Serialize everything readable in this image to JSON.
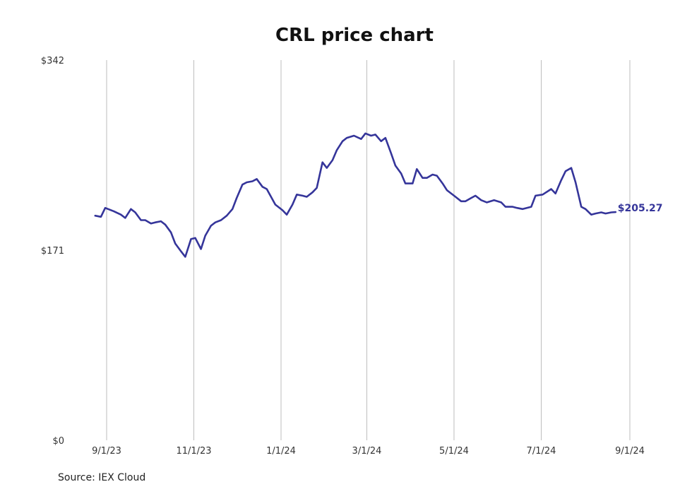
{
  "chart_data": {
    "type": "line",
    "title": "CRL price chart",
    "xlabel": "",
    "ylabel": "",
    "ylim": [
      0,
      342
    ],
    "y_ticks": [
      {
        "value": 0,
        "label": "$0"
      },
      {
        "value": 171,
        "label": "$171"
      },
      {
        "value": 342,
        "label": "$342"
      }
    ],
    "x_ticks": [
      {
        "date": "2023-09-01",
        "label": "9/1/23"
      },
      {
        "date": "2023-11-01",
        "label": "11/1/23"
      },
      {
        "date": "2024-01-01",
        "label": "1/1/24"
      },
      {
        "date": "2024-03-01",
        "label": "3/1/24"
      },
      {
        "date": "2024-05-01",
        "label": "5/1/24"
      },
      {
        "date": "2024-07-01",
        "label": "7/1/24"
      },
      {
        "date": "2024-09-01",
        "label": "9/1/24"
      }
    ],
    "grid": "vertical",
    "line_color": "#35359a",
    "last_value_label": "$205.27",
    "series": [
      {
        "x": [
          "2023-08-24",
          "2023-08-28",
          "2023-08-31",
          "2023-09-06",
          "2023-09-11",
          "2023-09-14",
          "2023-09-18",
          "2023-09-21",
          "2023-09-25",
          "2023-09-28",
          "2023-10-02",
          "2023-10-05",
          "2023-10-09",
          "2023-10-12",
          "2023-10-16",
          "2023-10-19",
          "2023-10-23",
          "2023-10-26",
          "2023-10-30",
          "2023-11-02",
          "2023-11-06",
          "2023-11-09",
          "2023-11-13",
          "2023-11-16",
          "2023-11-20",
          "2023-11-24",
          "2023-11-28",
          "2023-12-01",
          "2023-12-05",
          "2023-12-08",
          "2023-12-12",
          "2023-12-15",
          "2023-12-19",
          "2023-12-22",
          "2023-12-28",
          "2024-01-02",
          "2024-01-05",
          "2024-01-09",
          "2024-01-12",
          "2024-01-16",
          "2024-01-19",
          "2024-01-23",
          "2024-01-26",
          "2024-01-30",
          "2024-02-02",
          "2024-02-06",
          "2024-02-09",
          "2024-02-13",
          "2024-02-16",
          "2024-02-21",
          "2024-02-26",
          "2024-02-29",
          "2024-03-04",
          "2024-03-07",
          "2024-03-11",
          "2024-03-14",
          "2024-03-18",
          "2024-03-21",
          "2024-03-25",
          "2024-03-28",
          "2024-04-02",
          "2024-04-05",
          "2024-04-09",
          "2024-04-12",
          "2024-04-16",
          "2024-04-19",
          "2024-04-23",
          "2024-04-26",
          "2024-05-01",
          "2024-05-06",
          "2024-05-09",
          "2024-05-13",
          "2024-05-16",
          "2024-05-20",
          "2024-05-24",
          "2024-05-29",
          "2024-06-03",
          "2024-06-06",
          "2024-06-11",
          "2024-06-14",
          "2024-06-18",
          "2024-06-24",
          "2024-06-27",
          "2024-07-02",
          "2024-07-08",
          "2024-07-11",
          "2024-07-15",
          "2024-07-18",
          "2024-07-22",
          "2024-07-25",
          "2024-07-29",
          "2024-08-01",
          "2024-08-05",
          "2024-08-08",
          "2024-08-12",
          "2024-08-15",
          "2024-08-19",
          "2024-08-22"
        ],
        "values": [
          202,
          201,
          209,
          206,
          203,
          200,
          208,
          205,
          198,
          198,
          195,
          196,
          197,
          194,
          187,
          177,
          170,
          165,
          181,
          182,
          172,
          184,
          193,
          196,
          198,
          202,
          208,
          218,
          230,
          232,
          233,
          235,
          228,
          226,
          212,
          207,
          203,
          212,
          221,
          220,
          219,
          223,
          227,
          250,
          245,
          252,
          261,
          269,
          272,
          274,
          271,
          276,
          274,
          275,
          269,
          272,
          258,
          247,
          240,
          231,
          231,
          244,
          236,
          236,
          239,
          238,
          231,
          225,
          220,
          215,
          215,
          218,
          220,
          216,
          214,
          216,
          214,
          210,
          210,
          209,
          208,
          210,
          220,
          221,
          226,
          222,
          234,
          242,
          245,
          232,
          210,
          208,
          203,
          204,
          205,
          204,
          205,
          205.27
        ]
      }
    ]
  },
  "footer": {
    "source": "Source: IEX Cloud"
  }
}
